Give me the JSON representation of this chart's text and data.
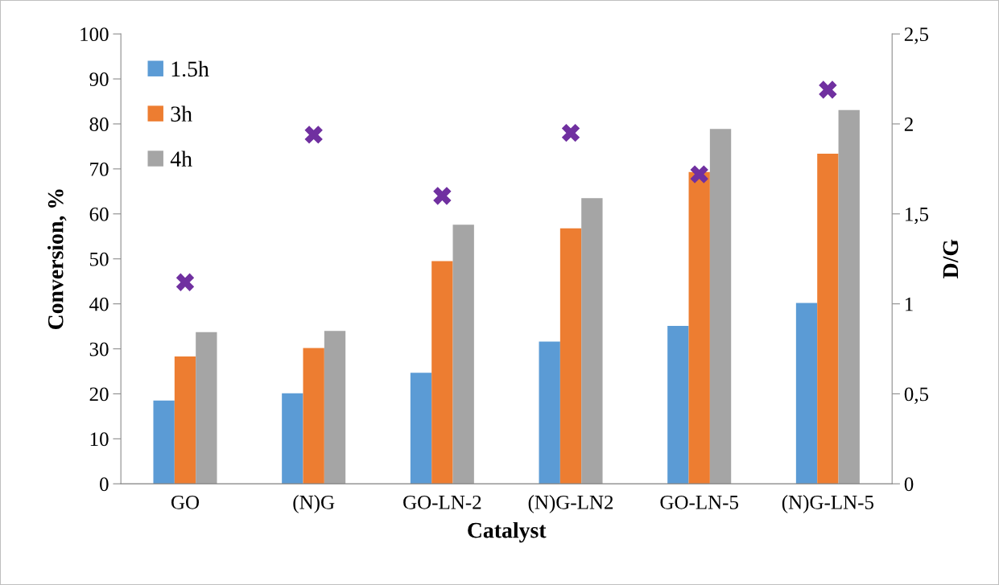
{
  "chart_data": {
    "type": "bar",
    "xlabel": "Catalyst",
    "ylabel": "Conversion, %",
    "y2label": "D/G",
    "categories": [
      "GO",
      "(N)G",
      "GO-LN-2",
      "(N)G-LN2",
      "GO-LN-5",
      "(N)G-LN-5"
    ],
    "series": [
      {
        "name": "1.5h",
        "color": "#5b9bd5",
        "values": [
          18.5,
          20.1,
          24.7,
          31.6,
          35.1,
          40.2
        ]
      },
      {
        "name": "3h",
        "color": "#ed7d31",
        "values": [
          28.3,
          30.2,
          49.5,
          56.8,
          69.3,
          73.4
        ]
      },
      {
        "name": "4h",
        "color": "#a5a5a5",
        "values": [
          33.7,
          34.0,
          57.6,
          63.5,
          78.9,
          83.1
        ]
      },
      {
        "type": "scatter",
        "axis": "y2",
        "marker": "cross",
        "color": "#7030a0",
        "values": [
          1.12,
          1.94,
          1.6,
          1.95,
          1.72,
          2.19
        ]
      }
    ],
    "ylim": [
      0,
      100
    ],
    "yticks": [
      0,
      10,
      20,
      30,
      40,
      50,
      60,
      70,
      80,
      90,
      100
    ],
    "y2lim": [
      0,
      2.5
    ],
    "y2ticks": [
      0,
      {
        "value": 0.5,
        "label": "0,5"
      },
      1,
      {
        "value": 1.5,
        "label": "1,5"
      },
      2,
      {
        "value": 2.5,
        "label": "2,5"
      }
    ],
    "grid": false,
    "legend": "top left"
  }
}
